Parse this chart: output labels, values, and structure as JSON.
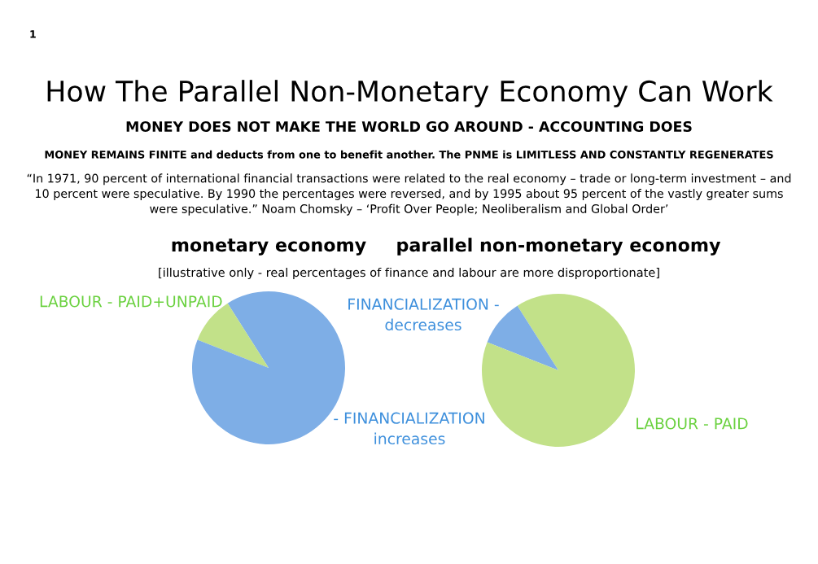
{
  "chart_data": [
    {
      "type": "pie",
      "title": "monetary economy",
      "subtitle": "MONEY DOES NOT MAKE THE WORLD GO AROUND - ACCOUNTING DOES",
      "annotations": [
        "How The Parallel Non-Monetary Economy Can Work",
        "1",
        "MONEY REMAINS FINITE and deducts from one to benefit another. The PNME is LIMITLESS AND CONSTANTLY REGENERATES",
        "“In 1971, 90 percent of international financial transactions were related to the real economy – trade or long-term investment – and\n10 percent were speculative. By 1990 the percentages were reversed, and by 1995 about 95 percent of the vastly greater sums\nwere speculative.” Noam Chomsky – ‘Profit Over People; Neoliberalism and Global Order’",
        "[illustrative only - real percentages of finance and labour are more disproportionate]"
      ],
      "categories": [
        null,
        "LABOUR - PAID+UNPAID",
        "- FINANCIALIZATION\nincreases"
      ],
      "values": [
        9,
        10,
        81
      ],
      "colors": [
        "#7eaee6",
        "#c2e189",
        "#7eaee6"
      ]
    },
    {
      "type": "pie",
      "title": "parallel non-monetary economy",
      "categories": [
        null,
        "FINANCIALIZATION -\ndecreases",
        "LABOUR - PAID"
      ],
      "values": [
        9,
        10,
        81
      ],
      "colors": [
        "#c2e189",
        "#7eaee6",
        "#c2e189"
      ]
    }
  ]
}
